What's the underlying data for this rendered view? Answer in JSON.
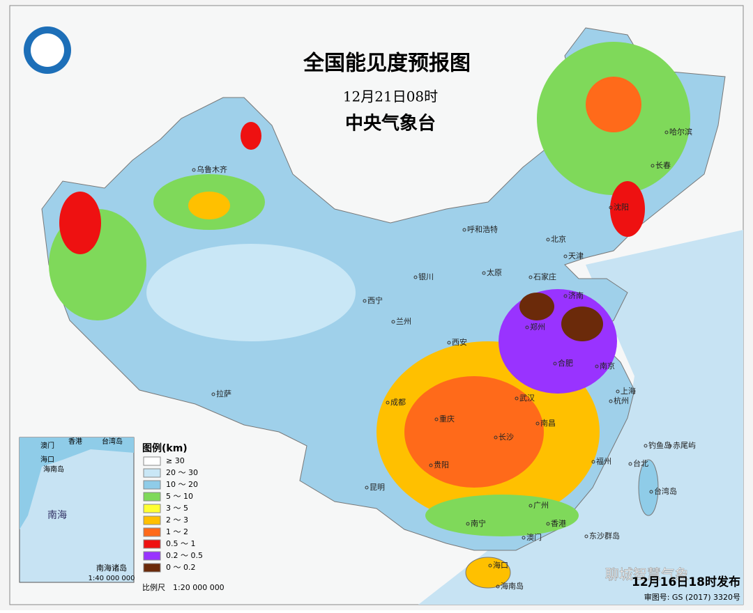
{
  "header": {
    "title": "全国能见度预报图",
    "time": "12月21日08时",
    "issuer": "中央气象台"
  },
  "legend": {
    "title": "图例(km)",
    "items": [
      {
        "label": "≥ 30",
        "color": "#ffffff"
      },
      {
        "label": "20 ～ 30",
        "color": "#c9e7f6"
      },
      {
        "label": "10 ～ 20",
        "color": "#8fcce8"
      },
      {
        "label": "5 ～ 10",
        "color": "#7fd95a"
      },
      {
        "label": "3 ～ 5",
        "color": "#ffff33"
      },
      {
        "label": "2 ～ 3",
        "color": "#ffc000"
      },
      {
        "label": "1 ～ 2",
        "color": "#ff6a1a"
      },
      {
        "label": "0.5 ～ 1",
        "color": "#ee1111"
      },
      {
        "label": "0.2 ～ 0.5",
        "color": "#9933ff"
      },
      {
        "label": "0 ～ 0.2",
        "color": "#6b2a0a"
      }
    ],
    "scale": "比例尺　1:20 000 000"
  },
  "cities": [
    "乌鲁木齐",
    "呼和浩特",
    "北京",
    "天津",
    "石家庄",
    "太原",
    "银川",
    "西宁",
    "兰州",
    "西安",
    "济南",
    "郑州",
    "合肥",
    "南京",
    "上海",
    "杭州",
    "武汉",
    "南昌",
    "长沙",
    "重庆",
    "成都",
    "贵阳",
    "昆明",
    "南宁",
    "广州",
    "香港",
    "澳门",
    "海口",
    "海南岛",
    "福州",
    "台北",
    "台湾岛",
    "拉萨",
    "哈尔滨",
    "长春",
    "沈阳",
    "东沙群岛",
    "钓鱼岛",
    "赤尾屿"
  ],
  "inset": {
    "name": "南海诸岛",
    "scale": "1:40 000 000",
    "sea": "南海",
    "labels": [
      "香港",
      "澳门",
      "海口",
      "海南岛",
      "台湾岛"
    ]
  },
  "footer": {
    "published": "12月16日18时发布",
    "review": "审图号: GS (2017) 3320号",
    "watermark": "聊城智慧气象"
  }
}
